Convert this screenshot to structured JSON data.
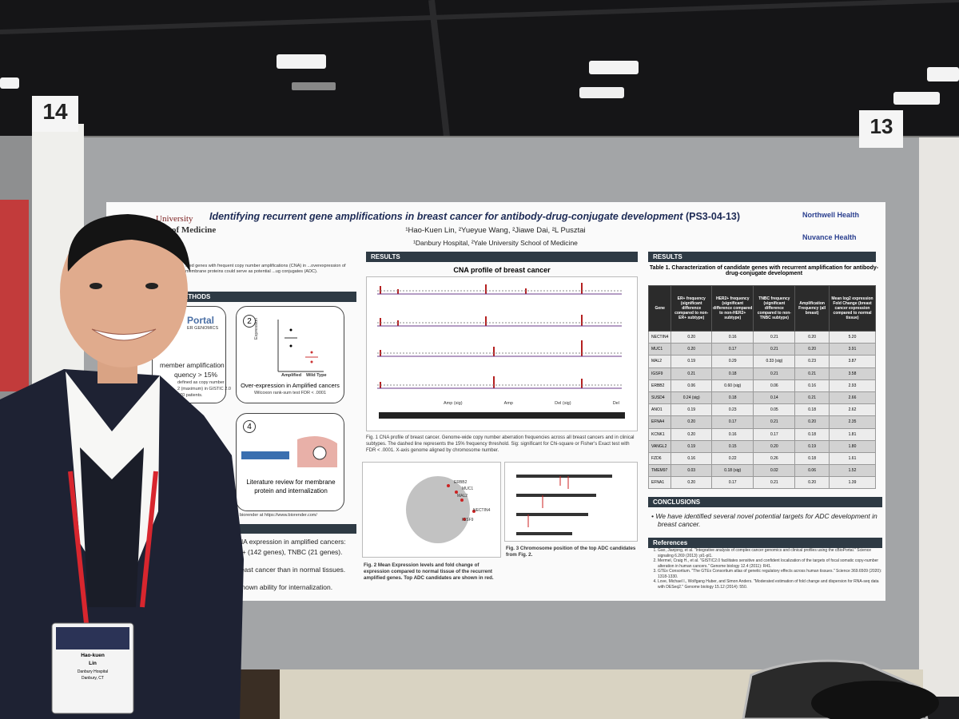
{
  "booth_numbers": [
    "14",
    "13"
  ],
  "poster": {
    "logos": {
      "left": [
        "University",
        "of Medicine"
      ],
      "right": [
        "Northwell Health",
        "Nuvance Health"
      ]
    },
    "title": "Identifying recurrent gene amplifications in breast cancer for antibody-drug-conjugate development",
    "code": "(PS3-04-13)",
    "authors": "¹Hao-Kuen Lin, ²Yueyue Wang, ²Jiawe Dai, ²L Pusztai",
    "affiliations": "¹Danbury Hospital, ²Yale University School of Medicine",
    "left_column": {
      "intro": "...ed genes with frequent copy number amplifications (CNA) in ...overexpression of membrane proteins could serve as potential ...ug conjugates (ADC).",
      "methods_header": "ETHODS",
      "box1": [
        "Portal",
        "ER GENOMICS",
        "member amplification",
        "quency > 15%",
        "defined as copy number",
        "2 (maximum) in GISTIC 2.0",
        "970 patients."
      ],
      "box2": {
        "number": "2",
        "y_label": "Expression",
        "x_labels": [
          "Amplified",
          "Wild Type"
        ],
        "text": "Over-expression in Amplified cancers",
        "note": "Wilcoxon rank-sum test FDR < .0001"
      },
      "box4": {
        "number": "4",
        "text": "Literature review for membrane protein and internalization"
      },
      "credit": "biorender at https://www.biorender.com/",
      "results": [
        "NA expression in amplified cancers:",
        "2+ (142 genes), TNBC (21 genes).",
        "reast cancer than in normal tissues.",
        "known ability for internalization."
      ]
    },
    "figures": {
      "header": "RESULTS",
      "cna_title": "CNA profile of breast cancer",
      "legend": [
        "Amp (sig)",
        "Amp",
        "Del (sig)",
        "Del"
      ],
      "fig1_caption": "Fig. 1 CNA profile of breast cancer. Genome-wide copy number aberration frequencies across all breast cancers and in clinical subtypes. The dashed line represents the 15% frequency threshold. Sig: significant for Chi-square or Fisher's Exact test with FDR < .0001. X-axis genome aligned by chromosome number.",
      "scatter_labels": [
        "ERBB2",
        "MUC1",
        "MAL2",
        "NECTIN4",
        "IGSF9"
      ],
      "fig2_caption": "Fig. 2 Mean Expression levels and fold change of expression compared to normal tissue of the recurrent amplified genes. Top ADC candidates are shown in red.",
      "fig3_caption": "Fig. 3 Chromosome position of the top ADC candidates from Fig. 2."
    },
    "table": {
      "header": "RESULTS",
      "title": "Table 1. Characterization of candidate genes with recurrent amplification for antibody-drug-conjugate development",
      "columns": [
        "Gene",
        "ER+ frequency (significant difference compared to non-ER+ subtype)",
        "HER2+ frequency (significant difference compared to non-HER2+ subtype)",
        "TNBC frequency (significant difference compared to non-TNBC subtype)",
        "Amplification Frequency (all breast)",
        "Mean log2 expression Fold Change (breast cancer expression compared to normal tissue)"
      ],
      "rows": [
        [
          "NECTIN4",
          "0.20",
          "0.16",
          "0.21",
          "0.20",
          "5.20"
        ],
        [
          "MUC1",
          "0.20",
          "0.17",
          "0.21",
          "0.20",
          "3.91"
        ],
        [
          "MAL2",
          "0.19",
          "0.29",
          "0.33 (sig)",
          "0.23",
          "3.87"
        ],
        [
          "IGSF9",
          "0.21",
          "0.18",
          "0.21",
          "0.21",
          "3.58"
        ],
        [
          "ERBB2",
          "0.06",
          "0.60 (sig)",
          "0.06",
          "0.16",
          "2.93"
        ],
        [
          "SUSD4",
          "0.24 (sig)",
          "0.18",
          "0.14",
          "0.21",
          "2.66"
        ],
        [
          "ANO1",
          "0.19",
          "0.23",
          "0.05",
          "0.18",
          "2.62"
        ],
        [
          "EFNA4",
          "0.20",
          "0.17",
          "0.21",
          "0.20",
          "2.35"
        ],
        [
          "KCNK1",
          "0.20",
          "0.16",
          "0.17",
          "0.18",
          "1.81"
        ],
        [
          "VANGL2",
          "0.19",
          "0.15",
          "0.20",
          "0.19",
          "1.80"
        ],
        [
          "FZD6",
          "0.16",
          "0.22",
          "0.26",
          "0.18",
          "1.61"
        ],
        [
          "TMEM97",
          "0.03",
          "0.18 (sig)",
          "0.02",
          "0.06",
          "1.52"
        ],
        [
          "EFNA1",
          "0.20",
          "0.17",
          "0.21",
          "0.20",
          "1.39"
        ]
      ]
    },
    "conclusions": {
      "header": "CONCLUSIONS",
      "text": "We have identified several novel potential targets for ADC development in breast cancer."
    },
    "references": {
      "header": "References",
      "items": [
        "Gao, Jianjong, et al. \"Integrative analysis of complex cancer genomics and clinical profiles using the cBioPortal.\" Science signaling 6.269 (2013): pl1-pl1.",
        "Mermel, Craig H., et al. \"GISTIC2.0 facilitates sensitive and confident localization of the targets of focal somatic copy-number alteration in human cancers.\" Genome biology 12.4 (2011): R41.",
        "GTEx Consortium. \"The GTEx Consortium atlas of genetic regulatory effects across human tissues.\" Science 369.6509 (2020): 1318-1330.",
        "Love, Michael I., Wolfgang Huber, and Simon Anders. \"Moderated estimation of fold change and dispersion for RNA-seq data with DESeq2.\" Genome biology 15.12 (2014): 550."
      ]
    }
  },
  "badge": {
    "name": [
      "Hao-kuen",
      "Lin"
    ],
    "affiliation": "Danbury Hospital",
    "location": "Danbury, CT"
  }
}
